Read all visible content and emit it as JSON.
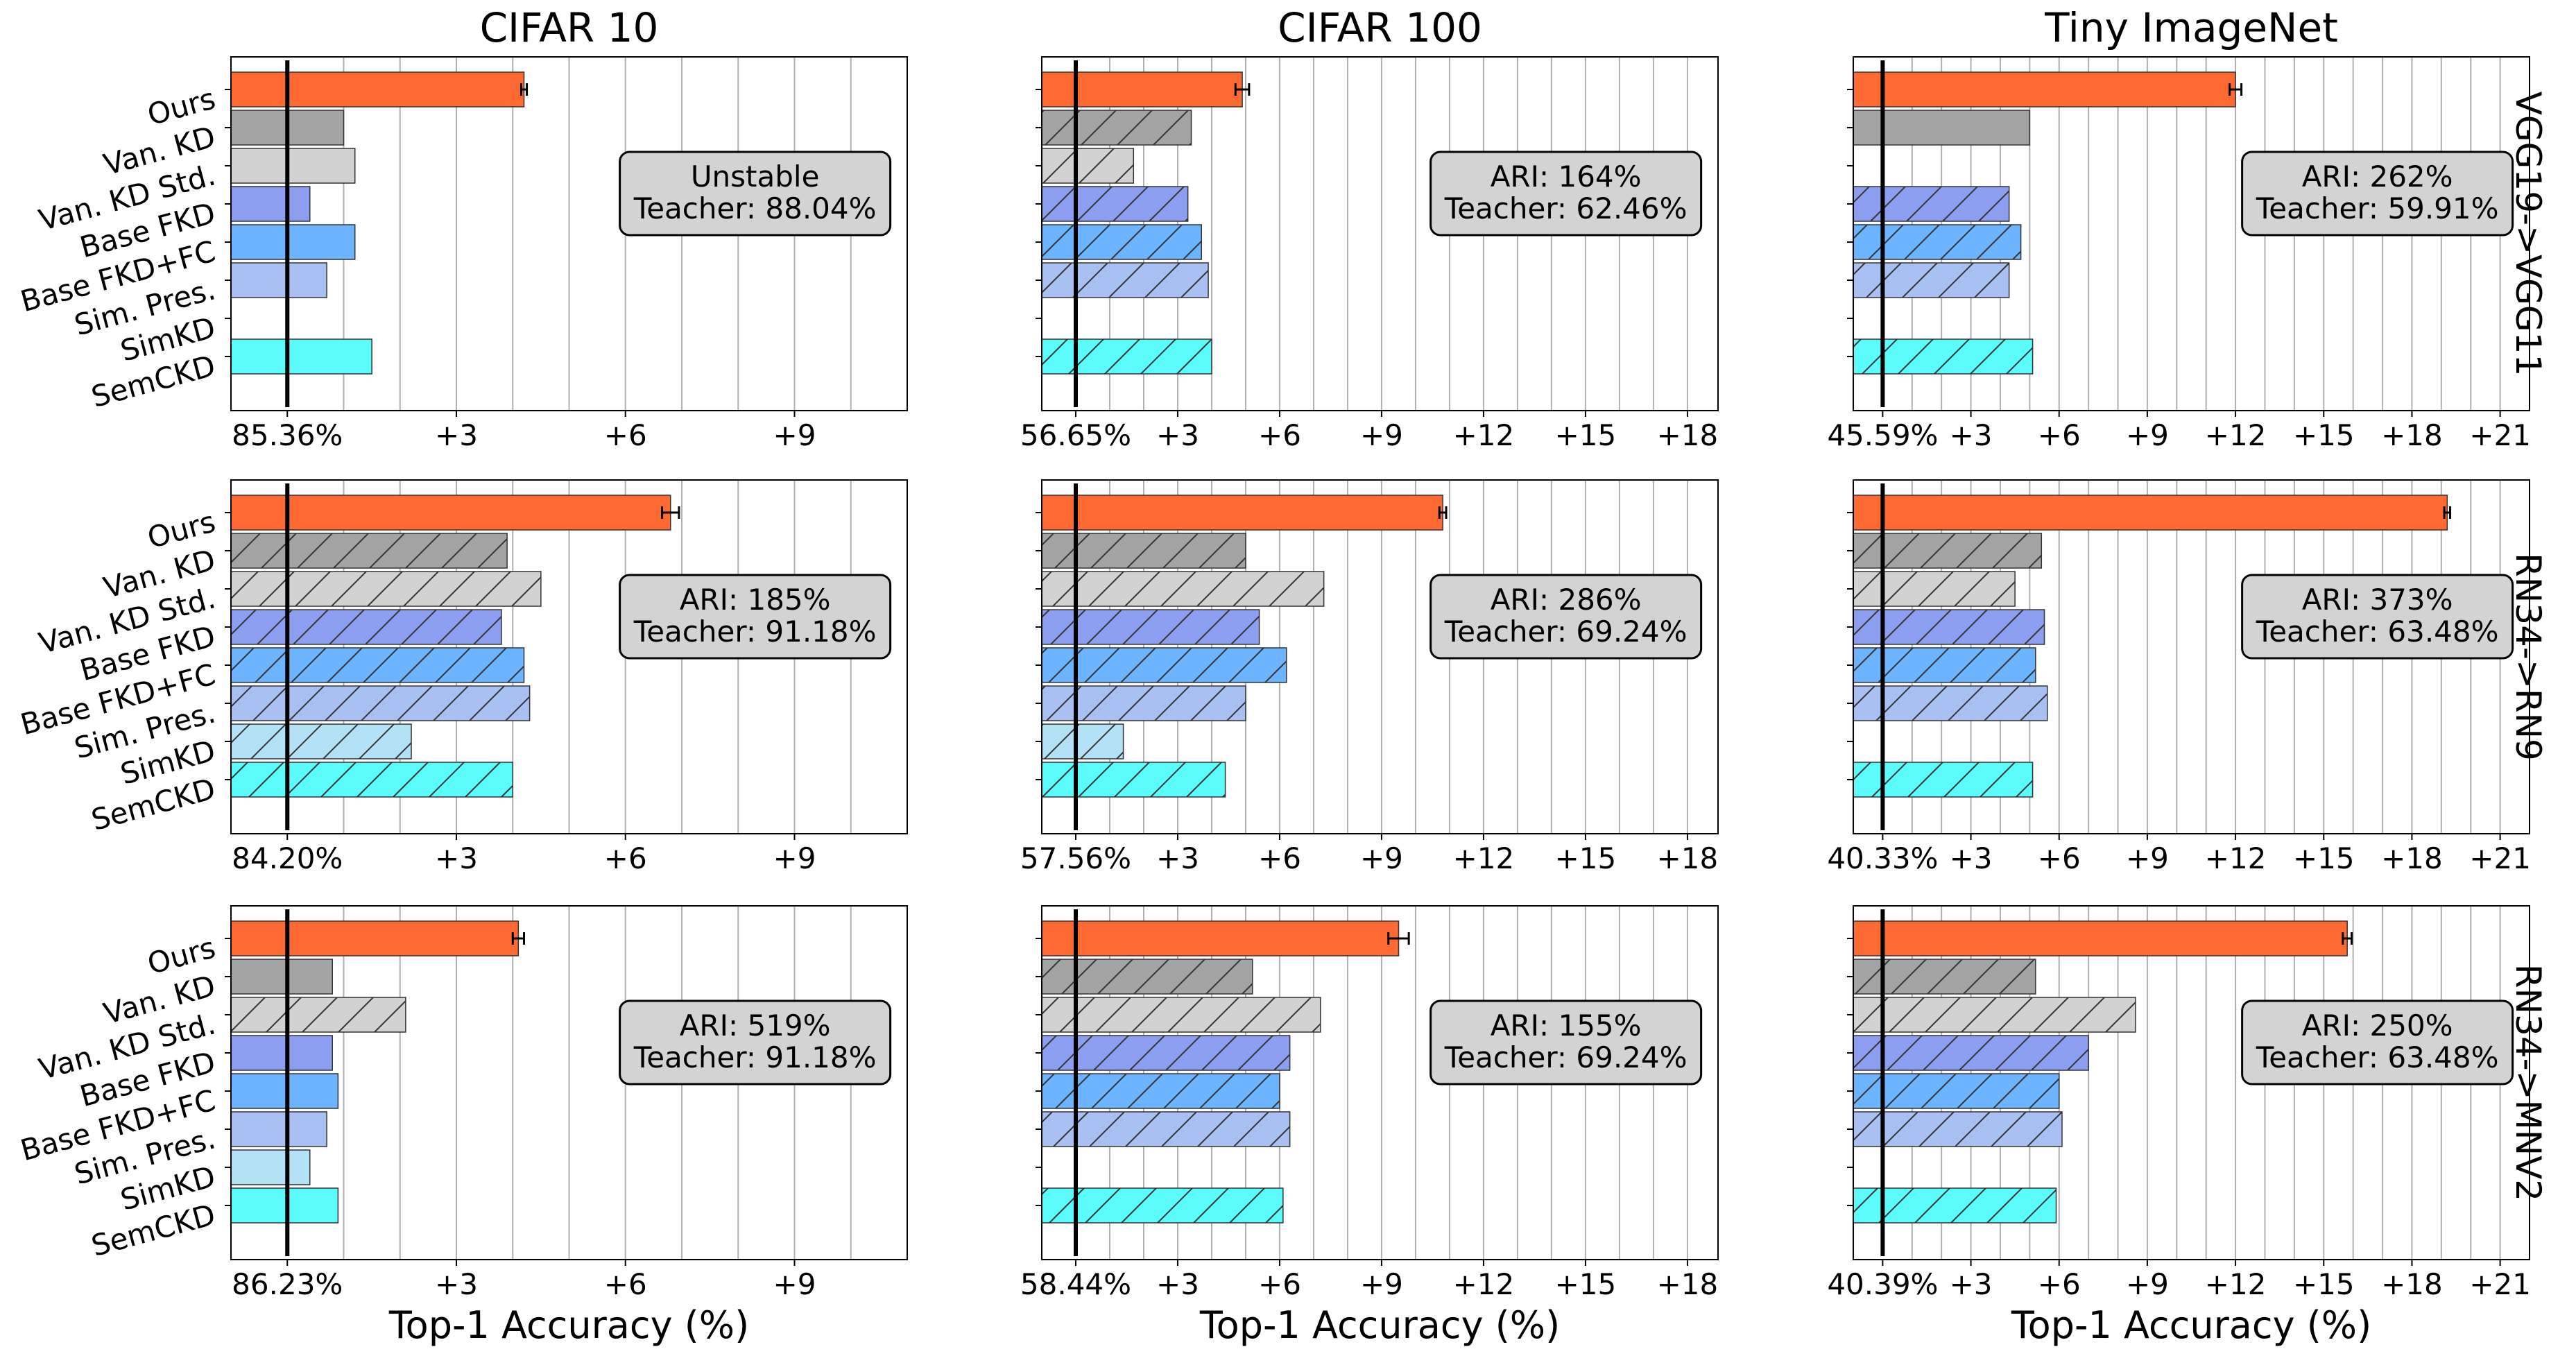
{
  "figure": {
    "columns": [
      "CIFAR 10",
      "CIFAR 100",
      "Tiny ImageNet"
    ],
    "rows": [
      "VGG19->VGG11",
      "RN34->RN9",
      "RN34->MNV2"
    ],
    "xlabel": "Top-1 Accuracy (%)",
    "methods": [
      "Ours",
      "Van. KD",
      "Van. KD Std.",
      "Base FKD",
      "Base FKD+FC",
      "Sim. Pres.",
      "SimKD",
      "SemCKD"
    ]
  },
  "colors": {
    "Ours": "#ff6a33",
    "Van. KD": "#a3a3a3",
    "Van. KD Std.": "#d2d2d2",
    "Base FKD": "#8c9ef0",
    "Base FKD+FC": "#6cb4ff",
    "Sim. Pres.": "#a9c0f2",
    "SimKD": "#b3e2f6",
    "SemCKD": "#5cfcfc",
    "baseline": "#000000",
    "grid": "#b0b0b0",
    "box": "#d3d3d3"
  },
  "chart_data": [
    {
      "type": "bar",
      "orientation": "horizontal",
      "title": "CIFAR 10",
      "row_label": "VGG19->VGG11",
      "xlabel": "",
      "categories": [
        "Ours",
        "Van. KD",
        "Van. KD Std.",
        "Base FKD",
        "Base FKD+FC",
        "Sim. Pres.",
        "SimKD",
        "SemCKD"
      ],
      "values": [
        4.2,
        1.0,
        1.2,
        0.4,
        1.2,
        0.7,
        null,
        1.5
      ],
      "errors": [
        0.05,
        0,
        0,
        0,
        0,
        0,
        0,
        0
      ],
      "hatched": [
        false,
        false,
        false,
        false,
        false,
        false,
        false,
        false
      ],
      "xlim": [
        -1,
        11
      ],
      "baseline_label": "85.36%",
      "xticks": [
        3,
        6,
        9
      ],
      "xtick_labels": [
        "+3",
        "+6",
        "+9"
      ],
      "grid_step": 1,
      "annotation": [
        "Unstable",
        "Teacher: 88.04%"
      ]
    },
    {
      "type": "bar",
      "orientation": "horizontal",
      "title": "CIFAR 100",
      "row_label": "VGG19->VGG11",
      "xlabel": "",
      "categories": [
        "Ours",
        "Van. KD",
        "Van. KD Std.",
        "Base FKD",
        "Base FKD+FC",
        "Sim. Pres.",
        "SimKD",
        "SemCKD"
      ],
      "values": [
        4.9,
        3.4,
        1.7,
        3.3,
        3.7,
        3.9,
        null,
        4.0
      ],
      "errors": [
        0.2,
        0,
        0,
        0,
        0,
        0,
        0,
        0
      ],
      "hatched": [
        false,
        true,
        true,
        true,
        true,
        true,
        false,
        true
      ],
      "xlim": [
        -1,
        18.9
      ],
      "baseline_label": "56.65%",
      "xticks": [
        3,
        6,
        9,
        12,
        15,
        18
      ],
      "xtick_labels": [
        "+3",
        "+6",
        "+9",
        "+12",
        "+15",
        "+18"
      ],
      "grid_step": 1,
      "annotation": [
        "ARI: 164%",
        "Teacher: 62.46%"
      ]
    },
    {
      "type": "bar",
      "orientation": "horizontal",
      "title": "Tiny ImageNet",
      "row_label": "VGG19->VGG11",
      "xlabel": "",
      "categories": [
        "Ours",
        "Van. KD",
        "Van. KD Std.",
        "Base FKD",
        "Base FKD+FC",
        "Sim. Pres.",
        "SimKD",
        "SemCKD"
      ],
      "values": [
        12.0,
        5.0,
        null,
        4.3,
        4.7,
        4.3,
        null,
        5.1
      ],
      "errors": [
        0.2,
        0,
        0,
        0,
        0,
        0,
        0,
        0
      ],
      "hatched": [
        false,
        false,
        false,
        true,
        true,
        true,
        false,
        true
      ],
      "xlim": [
        -1,
        22
      ],
      "baseline_label": "45.59%",
      "xticks": [
        3,
        6,
        9,
        12,
        15,
        18,
        21
      ],
      "xtick_labels": [
        "+3",
        "+6",
        "+9",
        "+12",
        "+15",
        "+18",
        "+21"
      ],
      "grid_step": 1,
      "annotation": [
        "ARI: 262%",
        "Teacher: 59.91%"
      ]
    },
    {
      "type": "bar",
      "orientation": "horizontal",
      "title": "",
      "row_label": "RN34->RN9",
      "xlabel": "",
      "categories": [
        "Ours",
        "Van. KD",
        "Van. KD Std.",
        "Base FKD",
        "Base FKD+FC",
        "Sim. Pres.",
        "SimKD",
        "SemCKD"
      ],
      "values": [
        6.8,
        3.9,
        4.5,
        3.8,
        4.2,
        4.3,
        2.2,
        4.0
      ],
      "errors": [
        0.15,
        0,
        0,
        0,
        0,
        0,
        0,
        0
      ],
      "hatched": [
        false,
        true,
        true,
        true,
        true,
        true,
        true,
        true
      ],
      "xlim": [
        -1,
        11
      ],
      "baseline_label": "84.20%",
      "xticks": [
        3,
        6,
        9
      ],
      "xtick_labels": [
        "+3",
        "+6",
        "+9"
      ],
      "grid_step": 1,
      "annotation": [
        "ARI: 185%",
        "Teacher: 91.18%"
      ]
    },
    {
      "type": "bar",
      "orientation": "horizontal",
      "title": "",
      "row_label": "RN34->RN9",
      "xlabel": "",
      "categories": [
        "Ours",
        "Van. KD",
        "Van. KD Std.",
        "Base FKD",
        "Base FKD+FC",
        "Sim. Pres.",
        "SimKD",
        "SemCKD"
      ],
      "values": [
        10.8,
        5.0,
        7.3,
        5.4,
        6.2,
        5.0,
        1.4,
        4.4
      ],
      "errors": [
        0.1,
        0,
        0,
        0,
        0,
        0,
        0,
        0
      ],
      "hatched": [
        false,
        true,
        true,
        true,
        true,
        true,
        true,
        true
      ],
      "xlim": [
        -1,
        18.9
      ],
      "baseline_label": "57.56%",
      "xticks": [
        3,
        6,
        9,
        12,
        15,
        18
      ],
      "xtick_labels": [
        "+3",
        "+6",
        "+9",
        "+12",
        "+15",
        "+18"
      ],
      "grid_step": 1,
      "annotation": [
        "ARI: 286%",
        "Teacher: 69.24%"
      ]
    },
    {
      "type": "bar",
      "orientation": "horizontal",
      "title": "",
      "row_label": "RN34->RN9",
      "xlabel": "",
      "categories": [
        "Ours",
        "Van. KD",
        "Van. KD Std.",
        "Base FKD",
        "Base FKD+FC",
        "Sim. Pres.",
        "SimKD",
        "SemCKD"
      ],
      "values": [
        19.2,
        5.4,
        4.5,
        5.5,
        5.2,
        5.6,
        null,
        5.1
      ],
      "errors": [
        0.1,
        0,
        0,
        0,
        0,
        0,
        0,
        0
      ],
      "hatched": [
        false,
        true,
        true,
        true,
        true,
        true,
        false,
        true
      ],
      "xlim": [
        -1,
        22
      ],
      "baseline_label": "40.33%",
      "xticks": [
        3,
        6,
        9,
        12,
        15,
        18,
        21
      ],
      "xtick_labels": [
        "+3",
        "+6",
        "+9",
        "+12",
        "+15",
        "+18",
        "+21"
      ],
      "grid_step": 1,
      "annotation": [
        "ARI: 373%",
        "Teacher: 63.48%"
      ]
    },
    {
      "type": "bar",
      "orientation": "horizontal",
      "title": "",
      "row_label": "RN34->MNV2",
      "xlabel": "Top-1 Accuracy (%)",
      "categories": [
        "Ours",
        "Van. KD",
        "Van. KD Std.",
        "Base FKD",
        "Base FKD+FC",
        "Sim. Pres.",
        "SimKD",
        "SemCKD"
      ],
      "values": [
        4.1,
        0.8,
        2.1,
        0.8,
        0.9,
        0.7,
        0.4,
        0.9
      ],
      "errors": [
        0.1,
        0,
        0,
        0,
        0,
        0,
        0,
        0
      ],
      "hatched": [
        false,
        false,
        true,
        false,
        false,
        false,
        false,
        false
      ],
      "xlim": [
        -1,
        11
      ],
      "baseline_label": "86.23%",
      "xticks": [
        3,
        6,
        9
      ],
      "xtick_labels": [
        "+3",
        "+6",
        "+9"
      ],
      "grid_step": 1,
      "annotation": [
        "ARI: 519%",
        "Teacher: 91.18%"
      ]
    },
    {
      "type": "bar",
      "orientation": "horizontal",
      "title": "",
      "row_label": "RN34->MNV2",
      "xlabel": "Top-1 Accuracy (%)",
      "categories": [
        "Ours",
        "Van. KD",
        "Van. KD Std.",
        "Base FKD",
        "Base FKD+FC",
        "Sim. Pres.",
        "SimKD",
        "SemCKD"
      ],
      "values": [
        9.5,
        5.2,
        7.2,
        6.3,
        6.0,
        6.3,
        null,
        6.1
      ],
      "errors": [
        0.3,
        0,
        0,
        0,
        0,
        0,
        0,
        0
      ],
      "hatched": [
        false,
        true,
        true,
        true,
        true,
        true,
        false,
        true
      ],
      "xlim": [
        -1,
        18.9
      ],
      "baseline_label": "58.44%",
      "xticks": [
        3,
        6,
        9,
        12,
        15,
        18
      ],
      "xtick_labels": [
        "+3",
        "+6",
        "+9",
        "+12",
        "+15",
        "+18"
      ],
      "grid_step": 1,
      "annotation": [
        "ARI: 155%",
        "Teacher: 69.24%"
      ]
    },
    {
      "type": "bar",
      "orientation": "horizontal",
      "title": "",
      "row_label": "RN34->MNV2",
      "xlabel": "Top-1 Accuracy (%)",
      "categories": [
        "Ours",
        "Van. KD",
        "Van. KD Std.",
        "Base FKD",
        "Base FKD+FC",
        "Sim. Pres.",
        "SimKD",
        "SemCKD"
      ],
      "values": [
        15.8,
        5.2,
        8.6,
        7.0,
        6.0,
        6.1,
        null,
        5.9
      ],
      "errors": [
        0.15,
        0,
        0,
        0,
        0,
        0,
        0,
        0
      ],
      "hatched": [
        false,
        true,
        true,
        true,
        true,
        true,
        false,
        true
      ],
      "xlim": [
        -1,
        22
      ],
      "baseline_label": "40.39%",
      "xticks": [
        3,
        6,
        9,
        12,
        15,
        18,
        21
      ],
      "xtick_labels": [
        "+3",
        "+6",
        "+9",
        "+12",
        "+15",
        "+18",
        "+21"
      ],
      "grid_step": 1,
      "annotation": [
        "ARI: 250%",
        "Teacher: 63.48%"
      ]
    }
  ]
}
